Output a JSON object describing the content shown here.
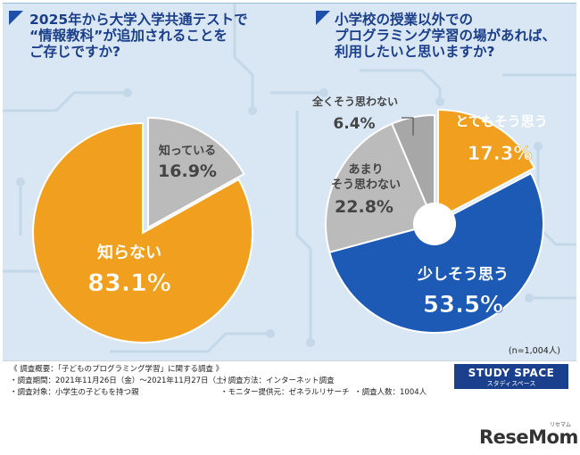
{
  "left_question": "2025年から大学入学共通テストで\n“情報教科”が追加されることを\nご存じですか?",
  "right_question": "小学校の授業以外での\nプログラミング学習の場があれば、\n利用したいと思いますか?",
  "sample_size": "(n=1,004人)",
  "colors": {
    "orange": "#f0a01e",
    "gray": "#bbbbbb",
    "darkgray": "#a7a7a7",
    "blue": "#1d5ab5",
    "navy": "#1b3e8a"
  },
  "chart_data": [
    {
      "type": "pie",
      "title": "2025年から大学入学共通テストで“情報教科”が追加されることをご存じですか?",
      "slices": [
        {
          "label": "知っている",
          "value": 16.9,
          "value_label": "16.9%",
          "color": "#bbbbbb",
          "text_color": "#444444"
        },
        {
          "label": "知らない",
          "value": 83.1,
          "value_label": "83.1%",
          "color": "#f0a01e",
          "text_color": "#ffffff"
        }
      ]
    },
    {
      "type": "pie",
      "title": "小学校の授業以外でのプログラミング学習の場があれば、利用したいと思いますか?",
      "slices": [
        {
          "label": "とてもそう思う",
          "value": 17.3,
          "value_label": "17.3%",
          "color": "#f0a01e",
          "text_color": "#ffffff"
        },
        {
          "label": "少しそう思う",
          "value": 53.5,
          "value_label": "53.5%",
          "color": "#1d5ab5",
          "text_color": "#ffffff"
        },
        {
          "label": "あまり\nそう思わない",
          "value": 22.8,
          "value_label": "22.8%",
          "color": "#bbbbbb",
          "text_color": "#444444"
        },
        {
          "label": "全くそう思わない",
          "value": 6.4,
          "value_label": "6.4%",
          "color": "#a7a7a7",
          "text_color": "#444444"
        }
      ]
    }
  ],
  "survey": {
    "overview": "《 調査概要：「子どものプログラミング学習」に関する調査 》",
    "period": "・調査期間：2021年11月26日（金）〜2021年11月27日（土）",
    "target": "・調査対象：小学生の子どもを持つ親",
    "method": "・調査方法：インターネット調査",
    "provider": "・モニター提供元：ゼネラルリサーチ",
    "count": "・調査人数：1004人"
  },
  "brand": {
    "study_space": "STUDY SPACE",
    "study_space_sub": "スタディスペース",
    "resemom": "ReseMom",
    "resemom_sub": "リセマム"
  }
}
